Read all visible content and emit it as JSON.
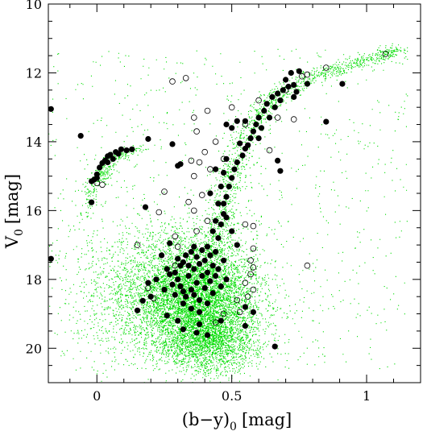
{
  "chart_data": {
    "type": "scatter",
    "title": "",
    "xlabel": {
      "base": "(b−y)",
      "sub": "0",
      "unit": "[mag]"
    },
    "ylabel": {
      "base": "V",
      "sub": "0",
      "unit": "[mag]"
    },
    "xlim": [
      -0.18,
      1.2
    ],
    "ylim": [
      21,
      10
    ],
    "y_inverted": true,
    "grid": false,
    "legend": "none",
    "x_ticks": [
      {
        "value": 0,
        "label": "0"
      },
      {
        "value": 0.5,
        "label": "0.5"
      },
      {
        "value": 1,
        "label": "1"
      }
    ],
    "y_ticks": [
      {
        "value": 10,
        "label": "10"
      },
      {
        "value": 12,
        "label": "12"
      },
      {
        "value": 14,
        "label": "14"
      },
      {
        "value": 16,
        "label": "16"
      },
      {
        "value": 18,
        "label": "18"
      },
      {
        "value": 20,
        "label": "20"
      }
    ],
    "colors": {
      "background_field": "#00dd00",
      "members": "#000000"
    },
    "series": [
      {
        "role": "field-stars",
        "marker": "tiny-dot",
        "description_values": "dense cloud of faint stars",
        "components": [
          {
            "kind": "cloud",
            "cx": 0.38,
            "cy": 18.6,
            "sx": 0.11,
            "sy": 0.85,
            "n": 5200
          },
          {
            "kind": "cloud",
            "cx": 0.25,
            "cy": 18.4,
            "sx": 0.16,
            "sy": 1.0,
            "n": 2200
          },
          {
            "kind": "cloud",
            "cx": 0.42,
            "cy": 19.8,
            "sx": 0.09,
            "sy": 0.45,
            "n": 1400
          },
          {
            "kind": "track",
            "pts": [
              [
                0.44,
                17.3
              ],
              [
                0.46,
                16.3
              ],
              [
                0.48,
                15.4
              ],
              [
                0.51,
                14.7
              ],
              [
                0.54,
                14.0
              ],
              [
                0.58,
                13.4
              ],
              [
                0.63,
                12.9
              ],
              [
                0.7,
                12.5
              ],
              [
                0.8,
                12.1
              ],
              [
                0.92,
                11.8
              ],
              [
                1.05,
                11.5
              ],
              [
                1.12,
                11.3
              ]
            ],
            "width": 0.03,
            "n": 1300
          },
          {
            "kind": "track",
            "pts": [
              [
                0.01,
                15.2
              ],
              [
                0.03,
                14.8
              ],
              [
                0.06,
                14.5
              ],
              [
                0.1,
                14.3
              ],
              [
                0.15,
                14.2
              ]
            ],
            "width": 0.02,
            "n": 220
          },
          {
            "kind": "track",
            "pts": [
              [
                -0.05,
                16.2
              ],
              [
                -0.03,
                15.6
              ],
              [
                -0.01,
                15.1
              ],
              [
                0.02,
                14.7
              ]
            ],
            "width": 0.015,
            "n": 120
          },
          {
            "kind": "uniform",
            "x": [
              -0.18,
              1.15
            ],
            "y": [
              11.3,
              20.6
            ],
            "n": 900
          }
        ]
      },
      {
        "role": "members-filled",
        "marker": "filled-circle",
        "points": [
          [
            -0.17,
            13.05
          ],
          [
            -0.06,
            13.83
          ],
          [
            -0.02,
            15.76
          ],
          [
            -0.17,
            17.4
          ],
          [
            0.04,
            14.42
          ],
          [
            0.05,
            14.38
          ],
          [
            0.07,
            14.3
          ],
          [
            0.09,
            14.22
          ],
          [
            0.11,
            14.25
          ],
          [
            0.13,
            14.22
          ],
          [
            0.02,
            14.62
          ],
          [
            0.01,
            14.75
          ],
          [
            0.0,
            14.95
          ],
          [
            -0.01,
            15.1
          ],
          [
            0.03,
            14.55
          ],
          [
            0.06,
            14.5
          ],
          [
            0.08,
            14.35
          ],
          [
            0.0,
            15.05
          ],
          [
            -0.02,
            15.15
          ],
          [
            0.04,
            14.6
          ],
          [
            0.19,
            13.92
          ],
          [
            0.18,
            15.9
          ],
          [
            0.28,
            14.07
          ],
          [
            0.3,
            14.7
          ],
          [
            0.31,
            14.65
          ],
          [
            0.27,
            16.95
          ],
          [
            0.24,
            17.3
          ],
          [
            0.44,
            17.2
          ],
          [
            0.45,
            16.8
          ],
          [
            0.46,
            16.4
          ],
          [
            0.47,
            16.1
          ],
          [
            0.47,
            15.8
          ],
          [
            0.48,
            15.6
          ],
          [
            0.49,
            15.3
          ],
          [
            0.5,
            15.05
          ],
          [
            0.51,
            14.8
          ],
          [
            0.52,
            14.6
          ],
          [
            0.54,
            14.4
          ],
          [
            0.55,
            14.2
          ],
          [
            0.57,
            13.9
          ],
          [
            0.58,
            13.7
          ],
          [
            0.59,
            13.5
          ],
          [
            0.6,
            13.3
          ],
          [
            0.62,
            13.1
          ],
          [
            0.63,
            12.9
          ],
          [
            0.65,
            12.7
          ],
          [
            0.67,
            12.6
          ],
          [
            0.69,
            12.5
          ],
          [
            0.71,
            12.4
          ],
          [
            0.73,
            12.35
          ],
          [
            0.74,
            12.55
          ],
          [
            0.72,
            12.0
          ],
          [
            0.75,
            11.95
          ],
          [
            0.73,
            12.7
          ],
          [
            0.7,
            12.2
          ],
          [
            0.68,
            12.8
          ],
          [
            0.66,
            13.0
          ],
          [
            0.64,
            13.3
          ],
          [
            0.61,
            13.6
          ],
          [
            0.6,
            13.9
          ],
          [
            0.56,
            14.1
          ],
          [
            0.53,
            14.05
          ],
          [
            0.48,
            14.5
          ],
          [
            0.47,
            14.9
          ],
          [
            0.46,
            15.3
          ],
          [
            0.45,
            15.8
          ],
          [
            0.44,
            16.3
          ],
          [
            0.43,
            16.6
          ],
          [
            0.48,
            16.2
          ],
          [
            0.5,
            16.6
          ],
          [
            0.52,
            17.0
          ],
          [
            0.42,
            15.5
          ],
          [
            0.44,
            14.8
          ],
          [
            0.5,
            13.6
          ],
          [
            0.55,
            13.4
          ],
          [
            0.78,
            12.32
          ],
          [
            0.91,
            12.32
          ],
          [
            0.85,
            13.42
          ],
          [
            0.67,
            14.55
          ],
          [
            0.68,
            14.85
          ],
          [
            0.52,
            13.4
          ],
          [
            0.48,
            13.5
          ],
          [
            0.3,
            17.4
          ],
          [
            0.32,
            17.5
          ],
          [
            0.34,
            17.6
          ],
          [
            0.36,
            17.7
          ],
          [
            0.38,
            17.55
          ],
          [
            0.4,
            17.45
          ],
          [
            0.42,
            17.3
          ],
          [
            0.29,
            17.8
          ],
          [
            0.3,
            18.0
          ],
          [
            0.31,
            18.2
          ],
          [
            0.32,
            18.35
          ],
          [
            0.33,
            18.5
          ],
          [
            0.35,
            18.3
          ],
          [
            0.37,
            18.1
          ],
          [
            0.39,
            17.9
          ],
          [
            0.41,
            17.8
          ],
          [
            0.43,
            17.6
          ],
          [
            0.34,
            17.9
          ],
          [
            0.36,
            18.45
          ],
          [
            0.38,
            18.6
          ],
          [
            0.4,
            18.25
          ],
          [
            0.42,
            18.05
          ],
          [
            0.44,
            17.9
          ],
          [
            0.28,
            18.15
          ],
          [
            0.27,
            17.85
          ],
          [
            0.33,
            17.3
          ],
          [
            0.35,
            17.2
          ],
          [
            0.37,
            17.35
          ],
          [
            0.39,
            17.15
          ],
          [
            0.31,
            17.6
          ],
          [
            0.29,
            18.45
          ],
          [
            0.32,
            18.7
          ],
          [
            0.35,
            18.85
          ],
          [
            0.38,
            18.95
          ],
          [
            0.41,
            18.7
          ],
          [
            0.43,
            18.4
          ],
          [
            0.46,
            18.2
          ],
          [
            0.48,
            18.0
          ],
          [
            0.45,
            17.7
          ],
          [
            0.47,
            17.45
          ],
          [
            0.26,
            17.7
          ],
          [
            0.25,
            18.3
          ],
          [
            0.22,
            18.0
          ],
          [
            0.2,
            18.5
          ],
          [
            0.19,
            18.1
          ],
          [
            0.36,
            17.05
          ],
          [
            0.41,
            17.05
          ],
          [
            0.38,
            19.3
          ],
          [
            0.15,
            18.9
          ],
          [
            0.17,
            18.62
          ],
          [
            0.26,
            19.05
          ],
          [
            0.3,
            19.2
          ],
          [
            0.37,
            19.55
          ],
          [
            0.41,
            19.62
          ],
          [
            0.46,
            19.2
          ],
          [
            0.55,
            18.8
          ],
          [
            0.58,
            18.95
          ],
          [
            0.66,
            19.95
          ],
          [
            0.55,
            19.35
          ],
          [
            0.32,
            19.45
          ]
        ]
      },
      {
        "role": "members-open",
        "marker": "open-circle",
        "points": [
          [
            0.28,
            12.25
          ],
          [
            0.33,
            12.15
          ],
          [
            0.36,
            13.3
          ],
          [
            0.41,
            13.1
          ],
          [
            0.5,
            13.0
          ],
          [
            0.37,
            13.7
          ],
          [
            0.4,
            14.3
          ],
          [
            0.44,
            14.0
          ],
          [
            0.35,
            14.55
          ],
          [
            0.38,
            14.6
          ],
          [
            0.42,
            14.8
          ],
          [
            0.36,
            15.0
          ],
          [
            0.34,
            15.75
          ],
          [
            0.39,
            15.55
          ],
          [
            0.36,
            16.0
          ],
          [
            0.41,
            16.3
          ],
          [
            0.37,
            16.6
          ],
          [
            0.25,
            15.45
          ],
          [
            0.23,
            16.05
          ],
          [
            0.15,
            17.0
          ],
          [
            0.29,
            16.75
          ],
          [
            0.3,
            17.05
          ],
          [
            0.55,
            16.4
          ],
          [
            0.58,
            16.45
          ],
          [
            0.58,
            17.1
          ],
          [
            0.57,
            17.45
          ],
          [
            0.55,
            18.1
          ],
          [
            0.58,
            18.3
          ],
          [
            0.52,
            18.6
          ],
          [
            0.53,
            18.95
          ],
          [
            0.47,
            19.0
          ],
          [
            0.44,
            19.25
          ],
          [
            0.78,
            17.6
          ],
          [
            0.58,
            17.65
          ],
          [
            0.19,
            18.25
          ],
          [
            0.21,
            18.55
          ],
          [
            0.55,
            13.5
          ],
          [
            0.73,
            13.35
          ],
          [
            0.78,
            12.05
          ],
          [
            0.85,
            11.85
          ],
          [
            1.07,
            11.45
          ],
          [
            0.76,
            12.1
          ],
          [
            0.02,
            15.25
          ],
          [
            -0.0,
            15.2
          ],
          [
            0.64,
            14.25
          ],
          [
            0.7,
            12.5
          ],
          [
            0.6,
            12.8
          ],
          [
            0.67,
            13.3
          ],
          [
            0.29,
            17.6
          ],
          [
            0.47,
            14.5
          ],
          [
            0.57,
            17.85
          ],
          [
            0.56,
            18.5
          ]
        ]
      }
    ]
  }
}
